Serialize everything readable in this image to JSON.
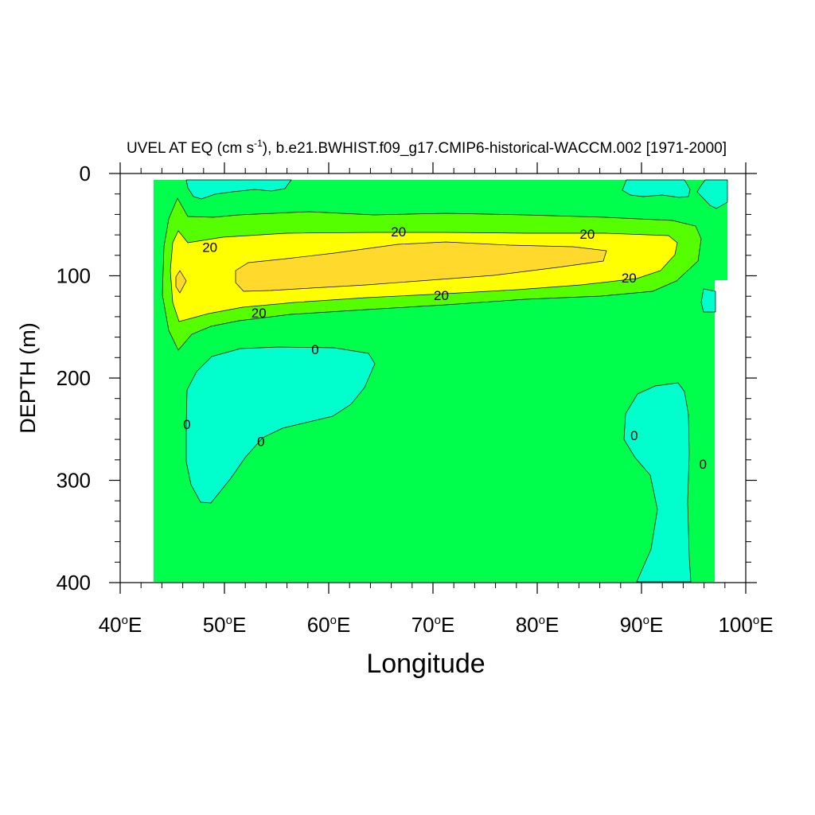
{
  "chart_data": {
    "type": "contour",
    "title_main": "UVEL AT EQ (cm s",
    "title_sup": "-1",
    "title_rest": "), b.e21.BWHIST.f09_g17.CMIP6-historical-WACCM.002 [1971-2000]",
    "xlabel": "Longitude",
    "ylabel": "DEPTH (m)",
    "xlim": [
      40,
      100
    ],
    "ylim": [
      0,
      400
    ],
    "y_inverted": true,
    "x_ticks": [
      {
        "value": 40,
        "label": "40",
        "unit": "E"
      },
      {
        "value": 50,
        "label": "50",
        "unit": "E"
      },
      {
        "value": 60,
        "label": "60",
        "unit": "E"
      },
      {
        "value": 70,
        "label": "70",
        "unit": "E"
      },
      {
        "value": 80,
        "label": "80",
        "unit": "E"
      },
      {
        "value": 90,
        "label": "90",
        "unit": "E"
      },
      {
        "value": 100,
        "label": "100",
        "unit": "E"
      }
    ],
    "degree_symbol": "o",
    "y_ticks": [
      {
        "value": 0,
        "label": "0"
      },
      {
        "value": 100,
        "label": "100"
      },
      {
        "value": 200,
        "label": "200"
      },
      {
        "value": 300,
        "label": "300"
      },
      {
        "value": 400,
        "label": "400"
      }
    ],
    "colors": {
      "background_band": "#00ff4c",
      "negative_band": "#00ffcc",
      "band_20": "#55ff00",
      "band_40": "#ffff00",
      "band_60": "#ffd92b",
      "contour_line": "#000000"
    },
    "contour_labels": [
      {
        "text": "20",
        "x": 48.6,
        "y": 72
      },
      {
        "text": "20",
        "x": 66.7,
        "y": 57
      },
      {
        "text": "20",
        "x": 84.8,
        "y": 59
      },
      {
        "text": "20",
        "x": 88.8,
        "y": 102
      },
      {
        "text": "20",
        "x": 70.8,
        "y": 119
      },
      {
        "text": "20",
        "x": 53.3,
        "y": 136
      },
      {
        "text": "0",
        "x": 58.7,
        "y": 172
      },
      {
        "text": "0",
        "x": 46.4,
        "y": 245
      },
      {
        "text": "0",
        "x": 53.5,
        "y": 262
      },
      {
        "text": "0",
        "x": 89.3,
        "y": 256
      },
      {
        "text": "0",
        "x": 95.9,
        "y": 284
      }
    ]
  }
}
